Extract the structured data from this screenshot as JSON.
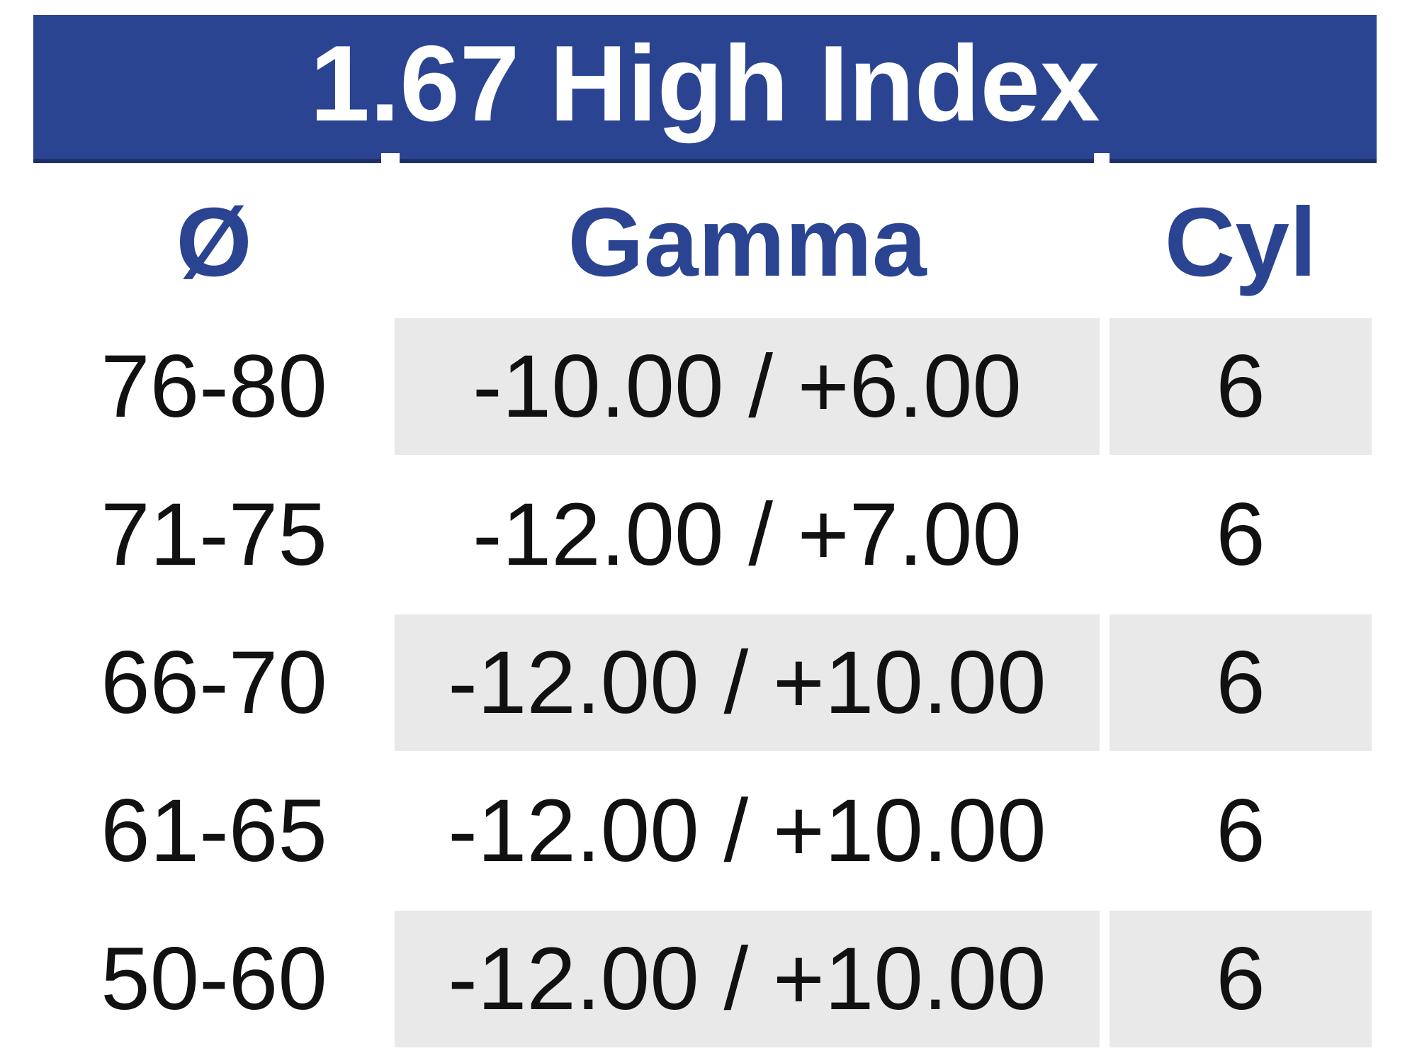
{
  "table": {
    "title": "1.67 High Index",
    "columns": [
      {
        "key": "diameter",
        "label": "Ø"
      },
      {
        "key": "gamma",
        "label": "Gamma"
      },
      {
        "key": "cyl",
        "label": "Cyl"
      }
    ],
    "rows": [
      {
        "diameter": "76-80",
        "gamma": "-10.00 / +6.00",
        "cyl": "6",
        "shaded": true
      },
      {
        "diameter": "71-75",
        "gamma": "-12.00 / +7.00",
        "cyl": "6",
        "shaded": false
      },
      {
        "diameter": "66-70",
        "gamma": "-12.00 / +10.00",
        "cyl": "6",
        "shaded": true
      },
      {
        "diameter": "61-65",
        "gamma": "-12.00 / +10.00",
        "cyl": "6",
        "shaded": false
      },
      {
        "diameter": "50-60",
        "gamma": "-12.00 / +10.00",
        "cyl": "6",
        "shaded": true
      }
    ],
    "colors": {
      "header_bg": "#2b4492",
      "header_bottom_border": "#1f2f6a",
      "heading_text": "#2b4492",
      "title_text": "#ffffff",
      "row_shade": "#e9e9e9",
      "body_text": "#111111",
      "background": "#ffffff"
    }
  }
}
